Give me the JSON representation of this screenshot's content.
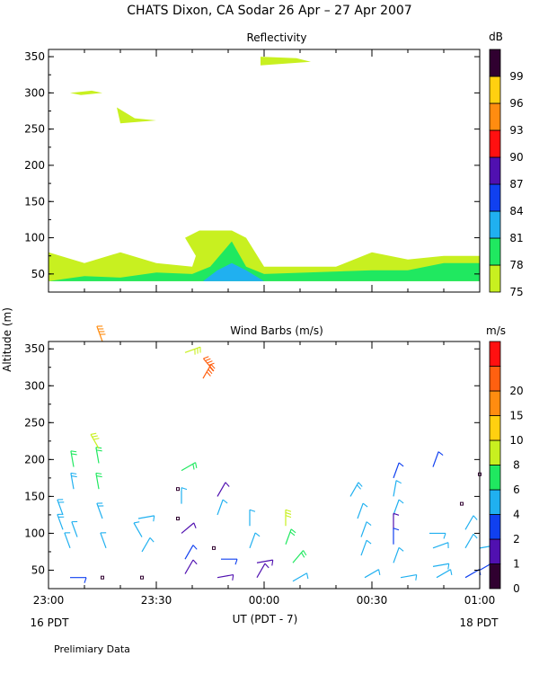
{
  "title": "CHATS Dixon, CA  Sodar  26 Apr – 27 Apr 2007",
  "ylabel": "Altitude (m)",
  "xlabel": "UT  (PDT - 7)",
  "date_left": "16 PDT",
  "date_right": "18 PDT",
  "footnote": "Prelimiary Data",
  "chart_data": [
    {
      "type": "area",
      "title": "Reflectivity",
      "colorbar_unit": "dB",
      "colorbar_levels": [
        "75",
        "78",
        "81",
        "84",
        "87",
        "90",
        "93",
        "96",
        "99"
      ],
      "colorbar_colors": [
        "#c8f020",
        "#20e860",
        "#20b0f0",
        "#1040f0",
        "#5010b0",
        "#ff1010",
        "#ff8c10",
        "#ffd010",
        "#300030"
      ],
      "x_ticks": [
        "23:00",
        "23:30",
        "00:00",
        "00:30",
        "01:00"
      ],
      "x_range_minutes": [
        0,
        120
      ],
      "y_ticks": [
        "50",
        "100",
        "150",
        "200",
        "250",
        "300",
        "350"
      ],
      "ylim": [
        25,
        360
      ],
      "regions": [
        {
          "level": "75",
          "points": [
            [
              0,
              80
            ],
            [
              10,
              65
            ],
            [
              20,
              80
            ],
            [
              30,
              65
            ],
            [
              40,
              60
            ],
            [
              41,
              75
            ],
            [
              38,
              100
            ],
            [
              42,
              110
            ],
            [
              51,
              110
            ],
            [
              55,
              100
            ],
            [
              60,
              60
            ],
            [
              80,
              60
            ],
            [
              90,
              80
            ],
            [
              100,
              70
            ],
            [
              110,
              75
            ],
            [
              120,
              75
            ],
            [
              120,
              40
            ],
            [
              0,
              40
            ]
          ]
        },
        {
          "level": "78",
          "points": [
            [
              0,
              40
            ],
            [
              10,
              47
            ],
            [
              20,
              45
            ],
            [
              30,
              52
            ],
            [
              40,
              50
            ],
            [
              45,
              60
            ],
            [
              51,
              95
            ],
            [
              55,
              60
            ],
            [
              60,
              50
            ],
            [
              90,
              55
            ],
            [
              100,
              55
            ],
            [
              110,
              65
            ],
            [
              120,
              65
            ],
            [
              120,
              40
            ]
          ]
        },
        {
          "level": "81",
          "points": [
            [
              43,
              40
            ],
            [
              47,
              55
            ],
            [
              51,
              65
            ],
            [
              55,
              55
            ],
            [
              60,
              40
            ]
          ]
        },
        {
          "level": "75",
          "points": [
            [
              6,
              300
            ],
            [
              12,
              303
            ],
            [
              15,
              300
            ],
            [
              9,
              297
            ]
          ]
        },
        {
          "level": "75",
          "points": [
            [
              19,
              280
            ],
            [
              24,
              265
            ],
            [
              30,
              262
            ],
            [
              20,
              258
            ]
          ]
        },
        {
          "level": "75",
          "points": [
            [
              59,
              350
            ],
            [
              69,
              348
            ],
            [
              73,
              343
            ],
            [
              59,
              338
            ]
          ]
        }
      ]
    },
    {
      "type": "scatter",
      "title": "Wind Barbs (m/s)",
      "colorbar_unit": "m/s",
      "colorbar_levels": [
        "0",
        "1",
        "2",
        "4",
        "6",
        "8",
        "10",
        "15",
        "20"
      ],
      "colorbar_colors": [
        "#300030",
        "#5010b0",
        "#1040f0",
        "#20b0f0",
        "#20e860",
        "#c8f020",
        "#ffd010",
        "#ff8c10",
        "#ff6010",
        "#ff1010"
      ],
      "x_ticks": [
        "23:00",
        "23:30",
        "00:00",
        "00:30",
        "01:00"
      ],
      "x_range_minutes": [
        0,
        120
      ],
      "y_ticks": [
        "50",
        "100",
        "150",
        "200",
        "250",
        "300",
        "350"
      ],
      "ylim": [
        25,
        360
      ],
      "barbs": [
        {
          "t": 4,
          "alt": 125,
          "dir": 340,
          "spd": 5
        },
        {
          "t": 4,
          "alt": 105,
          "dir": 340,
          "spd": 5
        },
        {
          "t": 6,
          "alt": 80,
          "dir": 340,
          "spd": 4
        },
        {
          "t": 6,
          "alt": 40,
          "dir": 90,
          "spd": 2
        },
        {
          "t": 7,
          "alt": 190,
          "dir": 350,
          "spd": 6
        },
        {
          "t": 7,
          "alt": 160,
          "dir": 350,
          "spd": 5
        },
        {
          "t": 8,
          "alt": 95,
          "dir": 340,
          "spd": 4
        },
        {
          "t": 14,
          "alt": 195,
          "dir": 350,
          "spd": 7
        },
        {
          "t": 14,
          "alt": 160,
          "dir": 350,
          "spd": 6
        },
        {
          "t": 15,
          "alt": 120,
          "dir": 340,
          "spd": 5
        },
        {
          "t": 16,
          "alt": 80,
          "dir": 340,
          "spd": 4
        },
        {
          "t": 15,
          "alt": 40,
          "dir": 0,
          "spd": 0.5
        },
        {
          "t": 14,
          "alt": 215,
          "dir": 330,
          "spd": 9
        },
        {
          "t": 15,
          "alt": 360,
          "dir": 340,
          "spd": 14
        },
        {
          "t": 25,
          "alt": 120,
          "dir": 80,
          "spd": 4
        },
        {
          "t": 26,
          "alt": 95,
          "dir": 330,
          "spd": 4
        },
        {
          "t": 26,
          "alt": 75,
          "dir": 30,
          "spd": 4
        },
        {
          "t": 26,
          "alt": 40,
          "dir": 0,
          "spd": 0.5
        },
        {
          "t": 37,
          "alt": 185,
          "dir": 60,
          "spd": 6
        },
        {
          "t": 36,
          "alt": 160,
          "dir": 0,
          "spd": 0.5
        },
        {
          "t": 37,
          "alt": 140,
          "dir": 0,
          "spd": 4
        },
        {
          "t": 36,
          "alt": 120,
          "dir": 0,
          "spd": 0.5
        },
        {
          "t": 37,
          "alt": 100,
          "dir": 50,
          "spd": 1
        },
        {
          "t": 38,
          "alt": 65,
          "dir": 30,
          "spd": 2
        },
        {
          "t": 38,
          "alt": 45,
          "dir": 30,
          "spd": 1
        },
        {
          "t": 38,
          "alt": 345,
          "dir": 70,
          "spd": 9
        },
        {
          "t": 43,
          "alt": 310,
          "dir": 30,
          "spd": 15
        },
        {
          "t": 46,
          "alt": 320,
          "dir": 320,
          "spd": 15
        },
        {
          "t": 47,
          "alt": 150,
          "dir": 30,
          "spd": 1
        },
        {
          "t": 47,
          "alt": 125,
          "dir": 20,
          "spd": 4
        },
        {
          "t": 46,
          "alt": 80,
          "dir": 0,
          "spd": 0.5
        },
        {
          "t": 48,
          "alt": 65,
          "dir": 90,
          "spd": 2
        },
        {
          "t": 47,
          "alt": 40,
          "dir": 80,
          "spd": 1
        },
        {
          "t": 56,
          "alt": 110,
          "dir": 0,
          "spd": 4
        },
        {
          "t": 56,
          "alt": 80,
          "dir": 20,
          "spd": 4
        },
        {
          "t": 58,
          "alt": 60,
          "dir": 80,
          "spd": 1
        },
        {
          "t": 58,
          "alt": 40,
          "dir": 30,
          "spd": 1
        },
        {
          "t": 66,
          "alt": 110,
          "dir": 0,
          "spd": 9
        },
        {
          "t": 66,
          "alt": 85,
          "dir": 20,
          "spd": 6
        },
        {
          "t": 68,
          "alt": 60,
          "dir": 40,
          "spd": 7
        },
        {
          "t": 68,
          "alt": 35,
          "dir": 60,
          "spd": 4
        },
        {
          "t": 84,
          "alt": 150,
          "dir": 30,
          "spd": 5
        },
        {
          "t": 86,
          "alt": 120,
          "dir": 20,
          "spd": 4
        },
        {
          "t": 87,
          "alt": 95,
          "dir": 20,
          "spd": 4
        },
        {
          "t": 87,
          "alt": 70,
          "dir": 20,
          "spd": 4
        },
        {
          "t": 88,
          "alt": 40,
          "dir": 60,
          "spd": 4
        },
        {
          "t": 96,
          "alt": 175,
          "dir": 20,
          "spd": 2
        },
        {
          "t": 96,
          "alt": 150,
          "dir": 10,
          "spd": 4
        },
        {
          "t": 96,
          "alt": 125,
          "dir": 20,
          "spd": 4
        },
        {
          "t": 96,
          "alt": 105,
          "dir": 0,
          "spd": 1
        },
        {
          "t": 96,
          "alt": 85,
          "dir": 0,
          "spd": 3
        },
        {
          "t": 96,
          "alt": 60,
          "dir": 20,
          "spd": 4
        },
        {
          "t": 98,
          "alt": 40,
          "dir": 80,
          "spd": 4
        },
        {
          "t": 107,
          "alt": 190,
          "dir": 20,
          "spd": 2
        },
        {
          "t": 106,
          "alt": 100,
          "dir": 90,
          "spd": 4
        },
        {
          "t": 107,
          "alt": 80,
          "dir": 70,
          "spd": 4
        },
        {
          "t": 107,
          "alt": 55,
          "dir": 80,
          "spd": 4
        },
        {
          "t": 108,
          "alt": 40,
          "dir": 60,
          "spd": 4
        },
        {
          "t": 115,
          "alt": 140,
          "dir": 0,
          "spd": 0.5
        },
        {
          "t": 116,
          "alt": 105,
          "dir": 30,
          "spd": 4
        },
        {
          "t": 116,
          "alt": 80,
          "dir": 30,
          "spd": 4
        },
        {
          "t": 116,
          "alt": 40,
          "dir": 60,
          "spd": 2
        },
        {
          "t": 120,
          "alt": 180,
          "dir": 0,
          "spd": 0.5
        },
        {
          "t": 120,
          "alt": 80,
          "dir": 80,
          "spd": 4
        },
        {
          "t": 120,
          "alt": 50,
          "dir": 60,
          "spd": 2
        }
      ]
    }
  ]
}
